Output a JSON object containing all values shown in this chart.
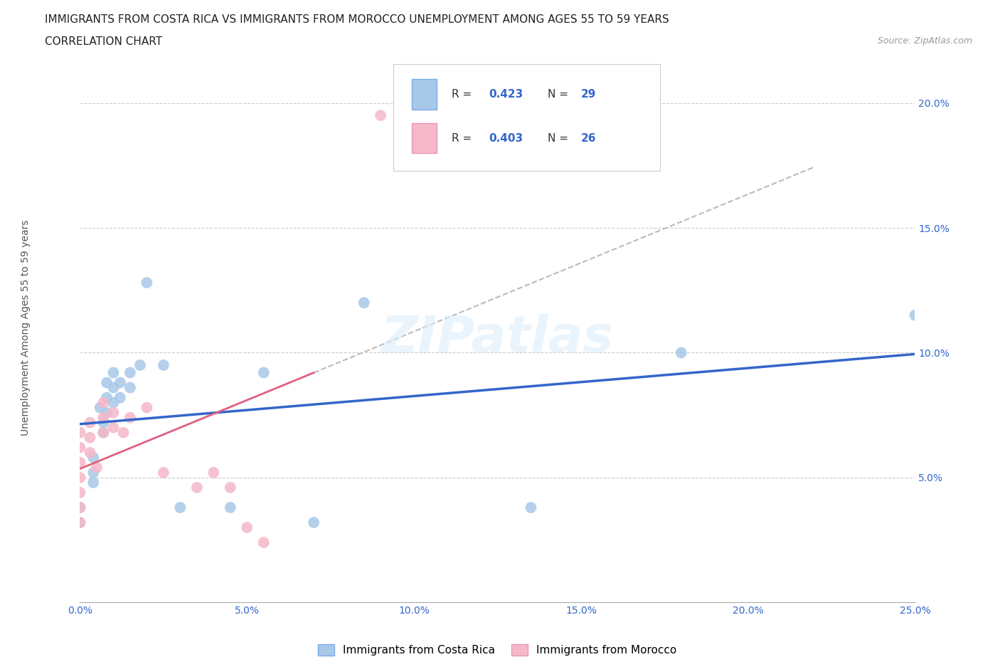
{
  "title_line1": "IMMIGRANTS FROM COSTA RICA VS IMMIGRANTS FROM MOROCCO UNEMPLOYMENT AMONG AGES 55 TO 59 YEARS",
  "title_line2": "CORRELATION CHART",
  "source_text": "Source: ZipAtlas.com",
  "ylabel": "Unemployment Among Ages 55 to 59 years",
  "xlim": [
    0.0,
    0.25
  ],
  "ylim": [
    0.0,
    0.22
  ],
  "xticks": [
    0.0,
    0.05,
    0.1,
    0.15,
    0.2,
    0.25
  ],
  "yticks": [
    0.05,
    0.1,
    0.15,
    0.2
  ],
  "xticklabels": [
    "0.0%",
    "5.0%",
    "10.0%",
    "15.0%",
    "20.0%",
    "25.0%"
  ],
  "yticklabels": [
    "5.0%",
    "10.0%",
    "15.0%",
    "20.0%"
  ],
  "costa_rica_color": "#a8c8e8",
  "morocco_color": "#f5b8c8",
  "costa_rica_line_color": "#3366cc",
  "morocco_line_color": "#e06080",
  "legend_label1": "Immigrants from Costa Rica",
  "legend_label2": "Immigrants from Morocco",
  "watermark": "ZIPatlas",
  "costa_rica_points": [
    [
      0.0,
      0.038
    ],
    [
      0.0,
      0.032
    ],
    [
      0.004,
      0.058
    ],
    [
      0.004,
      0.052
    ],
    [
      0.004,
      0.048
    ],
    [
      0.006,
      0.078
    ],
    [
      0.007,
      0.072
    ],
    [
      0.007,
      0.068
    ],
    [
      0.008,
      0.088
    ],
    [
      0.008,
      0.082
    ],
    [
      0.008,
      0.076
    ],
    [
      0.01,
      0.092
    ],
    [
      0.01,
      0.086
    ],
    [
      0.01,
      0.08
    ],
    [
      0.012,
      0.088
    ],
    [
      0.012,
      0.082
    ],
    [
      0.015,
      0.092
    ],
    [
      0.015,
      0.086
    ],
    [
      0.018,
      0.095
    ],
    [
      0.02,
      0.128
    ],
    [
      0.025,
      0.095
    ],
    [
      0.03,
      0.038
    ],
    [
      0.045,
      0.038
    ],
    [
      0.055,
      0.092
    ],
    [
      0.07,
      0.032
    ],
    [
      0.085,
      0.12
    ],
    [
      0.135,
      0.038
    ],
    [
      0.18,
      0.1
    ],
    [
      0.25,
      0.115
    ]
  ],
  "morocco_points": [
    [
      0.0,
      0.068
    ],
    [
      0.0,
      0.062
    ],
    [
      0.0,
      0.056
    ],
    [
      0.0,
      0.05
    ],
    [
      0.0,
      0.044
    ],
    [
      0.0,
      0.038
    ],
    [
      0.0,
      0.032
    ],
    [
      0.003,
      0.072
    ],
    [
      0.003,
      0.066
    ],
    [
      0.003,
      0.06
    ],
    [
      0.005,
      0.054
    ],
    [
      0.007,
      0.08
    ],
    [
      0.007,
      0.074
    ],
    [
      0.007,
      0.068
    ],
    [
      0.01,
      0.076
    ],
    [
      0.01,
      0.07
    ],
    [
      0.013,
      0.068
    ],
    [
      0.015,
      0.074
    ],
    [
      0.02,
      0.078
    ],
    [
      0.025,
      0.052
    ],
    [
      0.035,
      0.046
    ],
    [
      0.04,
      0.052
    ],
    [
      0.045,
      0.046
    ],
    [
      0.05,
      0.03
    ],
    [
      0.055,
      0.024
    ],
    [
      0.09,
      0.195
    ]
  ]
}
